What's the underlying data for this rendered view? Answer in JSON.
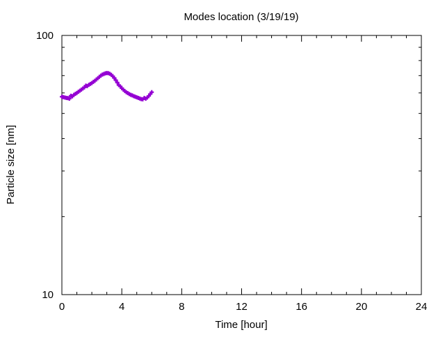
{
  "chart_data": {
    "type": "scatter",
    "title": "Modes location (3/19/19)",
    "xlabel": "Time [hour]",
    "ylabel": "Particle size [nm]",
    "xlim": [
      0,
      24
    ],
    "ylim": [
      10,
      100
    ],
    "yscale": "log",
    "xticks": [
      "0",
      "4",
      "8",
      "12",
      "16",
      "20",
      "24"
    ],
    "yticks": [
      "10",
      "100"
    ],
    "grid": false,
    "legend": "none",
    "series": [
      {
        "color": "#9400d3",
        "x": [
          0.0,
          0.1,
          0.2,
          0.3,
          0.4,
          0.5,
          0.6,
          0.7,
          0.8,
          0.9,
          1.0,
          1.1,
          1.2,
          1.3,
          1.4,
          1.5,
          1.6,
          1.7,
          1.8,
          1.9,
          2.0,
          2.1,
          2.2,
          2.3,
          2.4,
          2.5,
          2.6,
          2.7,
          2.8,
          2.9,
          3.0,
          3.1,
          3.2,
          3.3,
          3.4,
          3.5,
          3.6,
          3.7,
          3.8,
          3.9,
          4.0,
          4.1,
          4.2,
          4.3,
          4.4,
          4.5,
          4.6,
          4.7,
          4.8,
          4.9,
          5.0,
          5.1,
          5.2,
          5.3,
          5.4,
          5.5,
          5.6,
          5.7,
          5.8,
          5.9,
          6.0
        ],
        "y": [
          58.0,
          57.8,
          57.6,
          57.4,
          57.3,
          57.0,
          58.5,
          58.2,
          59.0,
          59.5,
          60.0,
          60.6,
          61.2,
          61.8,
          62.4,
          63.0,
          64.0,
          63.8,
          64.5,
          65.0,
          65.5,
          66.2,
          66.8,
          67.6,
          68.4,
          69.2,
          70.0,
          70.6,
          71.0,
          71.4,
          71.6,
          71.5,
          71.1,
          70.5,
          69.6,
          68.5,
          67.2,
          65.8,
          64.3,
          63.6,
          62.6,
          61.8,
          61.0,
          60.4,
          59.9,
          59.4,
          59.0,
          58.7,
          58.3,
          58.0,
          57.7,
          57.4,
          57.1,
          56.8,
          56.7,
          57.4,
          57.0,
          57.6,
          58.4,
          59.4,
          60.4
        ]
      }
    ]
  }
}
